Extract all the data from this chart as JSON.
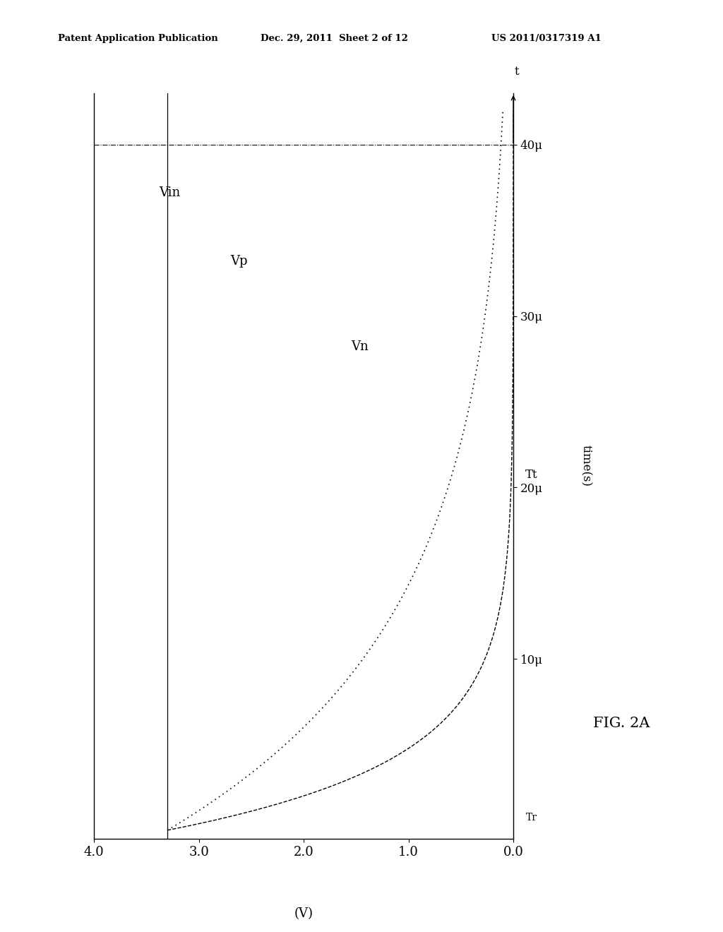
{
  "header_left": "Patent Application Publication",
  "header_center": "Dec. 29, 2011  Sheet 2 of 12",
  "header_right": "US 2011/0317319 A1",
  "fig_label": "FIG. 2A",
  "ylabel_rotated": "time(s)",
  "xlabel_label": "(V)",
  "Vin_level": 3.3,
  "tau_Vp": 4e-06,
  "tau_Vn": 1.2e-05,
  "Tr_time": 1.5e-06,
  "Tt_time": 4e-05,
  "background_color": "#ffffff",
  "line_color": "#000000"
}
